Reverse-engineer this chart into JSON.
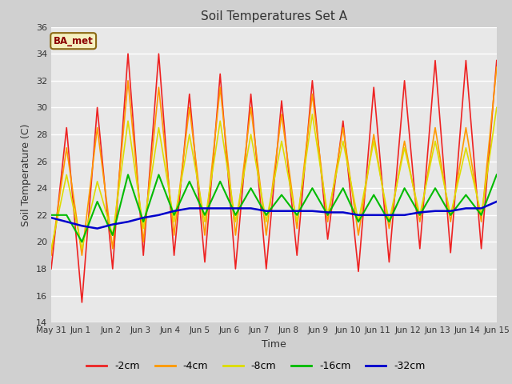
{
  "title": "Soil Temperatures Set A",
  "xlabel": "Time",
  "ylabel": "Soil Temperature (C)",
  "ylim": [
    14,
    36
  ],
  "series": {
    "-2cm": {
      "color": "#ee2222",
      "lw": 1.2
    },
    "-4cm": {
      "color": "#ff9900",
      "lw": 1.2
    },
    "-8cm": {
      "color": "#dddd00",
      "lw": 1.2
    },
    "-16cm": {
      "color": "#00bb00",
      "lw": 1.5
    },
    "-32cm": {
      "color": "#0000cc",
      "lw": 1.8
    }
  },
  "tick_labels": [
    "May 31",
    "Jun 1",
    "Jun 2",
    "Jun 3",
    "Jun 4",
    "Jun 5",
    "Jun 6",
    "Jun 7",
    "Jun 8",
    "Jun 9",
    "Jun 10",
    "Jun 11",
    "Jun 12",
    "Jun 13",
    "Jun 14",
    "Jun 15"
  ],
  "yticks": [
    14,
    16,
    18,
    20,
    22,
    24,
    26,
    28,
    30,
    32,
    34,
    36
  ],
  "data_2cm": [
    18.0,
    28.5,
    15.5,
    30.0,
    18.0,
    34.0,
    19.0,
    34.0,
    19.0,
    31.0,
    18.5,
    32.5,
    18.0,
    31.0,
    18.0,
    30.5,
    19.0,
    32.0,
    20.2,
    29.0,
    17.8,
    31.5,
    18.5,
    32.0,
    19.5,
    33.5,
    19.2,
    33.5,
    19.5,
    33.5
  ],
  "data_4cm": [
    19.0,
    27.0,
    19.0,
    28.5,
    19.5,
    32.0,
    20.0,
    31.5,
    20.5,
    30.0,
    20.5,
    31.5,
    20.5,
    30.0,
    20.5,
    29.5,
    21.0,
    31.0,
    21.5,
    28.5,
    20.5,
    28.0,
    21.0,
    27.5,
    21.5,
    28.5,
    21.5,
    28.5,
    21.5,
    33.0
  ],
  "data_8cm": [
    19.5,
    25.0,
    19.5,
    24.5,
    20.5,
    29.0,
    21.0,
    28.5,
    21.5,
    28.0,
    21.5,
    29.0,
    21.5,
    28.0,
    21.5,
    27.5,
    21.5,
    29.5,
    22.0,
    27.5,
    21.5,
    27.5,
    21.5,
    27.0,
    22.0,
    27.5,
    22.0,
    27.0,
    22.0,
    30.0
  ],
  "data_16cm": [
    22.0,
    22.0,
    20.0,
    23.0,
    20.5,
    25.0,
    21.5,
    25.0,
    22.0,
    24.5,
    22.0,
    24.5,
    22.0,
    24.0,
    22.0,
    23.5,
    22.0,
    24.0,
    22.0,
    24.0,
    21.5,
    23.5,
    21.5,
    24.0,
    22.0,
    24.0,
    22.0,
    23.5,
    22.0,
    25.0
  ],
  "data_32cm": [
    21.8,
    21.5,
    21.2,
    21.0,
    21.3,
    21.5,
    21.8,
    22.0,
    22.3,
    22.5,
    22.5,
    22.5,
    22.5,
    22.5,
    22.3,
    22.3,
    22.3,
    22.3,
    22.2,
    22.2,
    22.0,
    22.0,
    22.0,
    22.0,
    22.2,
    22.3,
    22.3,
    22.5,
    22.5,
    23.0
  ],
  "plot_bg": "#e8e8e8",
  "fig_bg": "#d0d0d0"
}
